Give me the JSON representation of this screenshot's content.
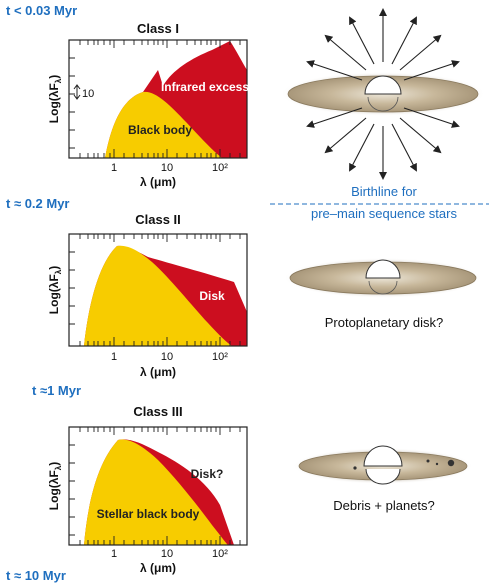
{
  "colors": {
    "time": "#1f6fbf",
    "blackbody": "#f7cc00",
    "excess": "#cc0e1f",
    "disk": "#b8a787",
    "star": "#ffffff"
  },
  "times": {
    "t1": "t < 0.03 Myr",
    "t2": "t ≈ 0.2 Myr",
    "t3": "t ≈1 Myr",
    "t4": "t ≈ 10 Myr"
  },
  "panels": [
    {
      "title": "Class I",
      "ylabel": "Log(λF",
      "ylabel_sub": "λ",
      "xlabel": "λ (μm)",
      "ticks": [
        "1",
        "10",
        "10²"
      ],
      "scale_label": "10",
      "red_label": "Infrared excess",
      "yellow_label": "Black body"
    },
    {
      "title": "Class II",
      "ylabel": "Log(λF",
      "ylabel_sub": "λ",
      "xlabel": "λ (μm)",
      "ticks": [
        "1",
        "10",
        "10²"
      ],
      "red_label": "Disk"
    },
    {
      "title": "Class III",
      "ylabel": "Log(λF",
      "ylabel_sub": "λ",
      "xlabel": "λ (μm)",
      "ticks": [
        "1",
        "10",
        "10²"
      ],
      "red_label": "Disk?",
      "yellow_label": "Stellar black body"
    }
  ],
  "birthline": {
    "line1": "Birthline for",
    "line2": "pre–main sequence stars"
  },
  "captions": {
    "c2": "Protoplanetary disk?",
    "c3": "Debris + planets?"
  }
}
